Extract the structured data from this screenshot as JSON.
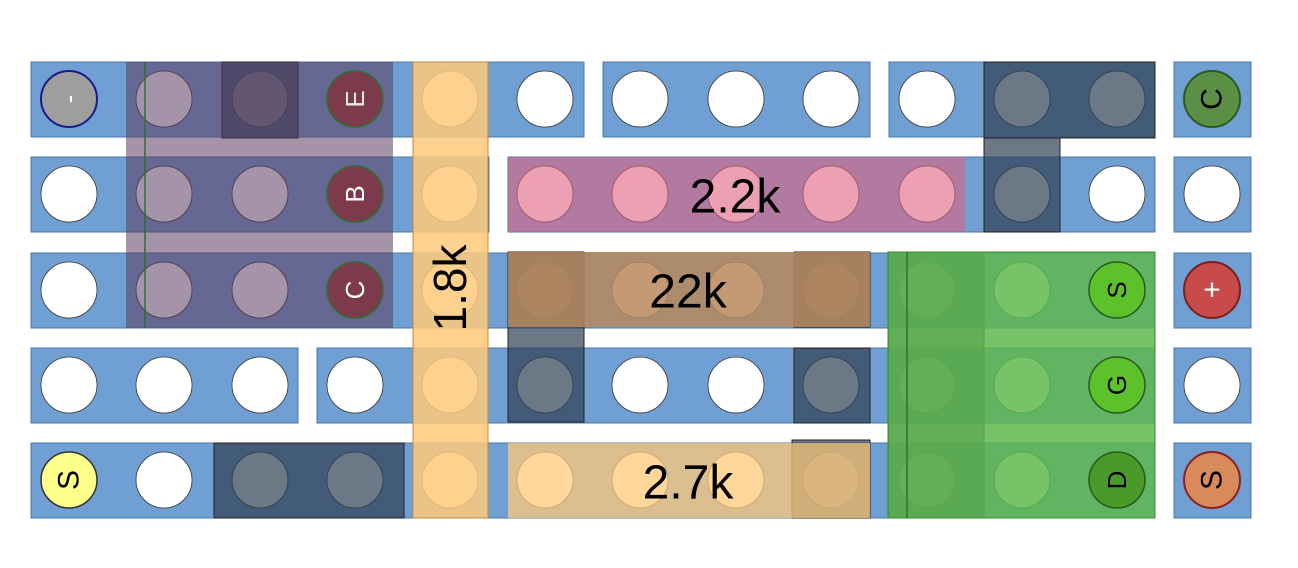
{
  "colors": {
    "strip": "#6f9fd3",
    "hole": "#ffffff",
    "gray_hole": "#9a9a9a",
    "dark_overlay": "#2e3e52",
    "transistor_body": "#5b3a5e",
    "transistor_pin": "#7d3a4d",
    "transistor_pin_stroke": "#2f6f2f",
    "resistor_1_8k": "#ffc97a",
    "resistor_1_8k_edge": "#c0893a",
    "resistor_2_2k": "#e06080",
    "resistor_22k": "#b9885a",
    "resistor_2_7k": "#ffc97a",
    "mosfet_body": "#5fb84e",
    "mosfet_light": "#b4e88c",
    "mosfet_pin": "#5dc12b",
    "terminal_minus": "#9e9e9e",
    "terminal_plus": "#c84a4a",
    "terminal_c": "#5c8f46",
    "terminal_s_left": "#ffff8c",
    "terminal_s_right": "#d98a5a"
  },
  "transistor": {
    "pins": [
      "E",
      "B",
      "C"
    ]
  },
  "resistors": [
    {
      "id": "r1",
      "label": "1.8k"
    },
    {
      "id": "r2",
      "label": "2.2k"
    },
    {
      "id": "r3",
      "label": "22k"
    },
    {
      "id": "r4",
      "label": "2.7k"
    }
  ],
  "mosfet": {
    "pins": [
      "S",
      "G",
      "D"
    ]
  },
  "terminals": {
    "minus": "-",
    "plus": "+",
    "collector": "C",
    "source_left": "S",
    "source_right": "S"
  }
}
